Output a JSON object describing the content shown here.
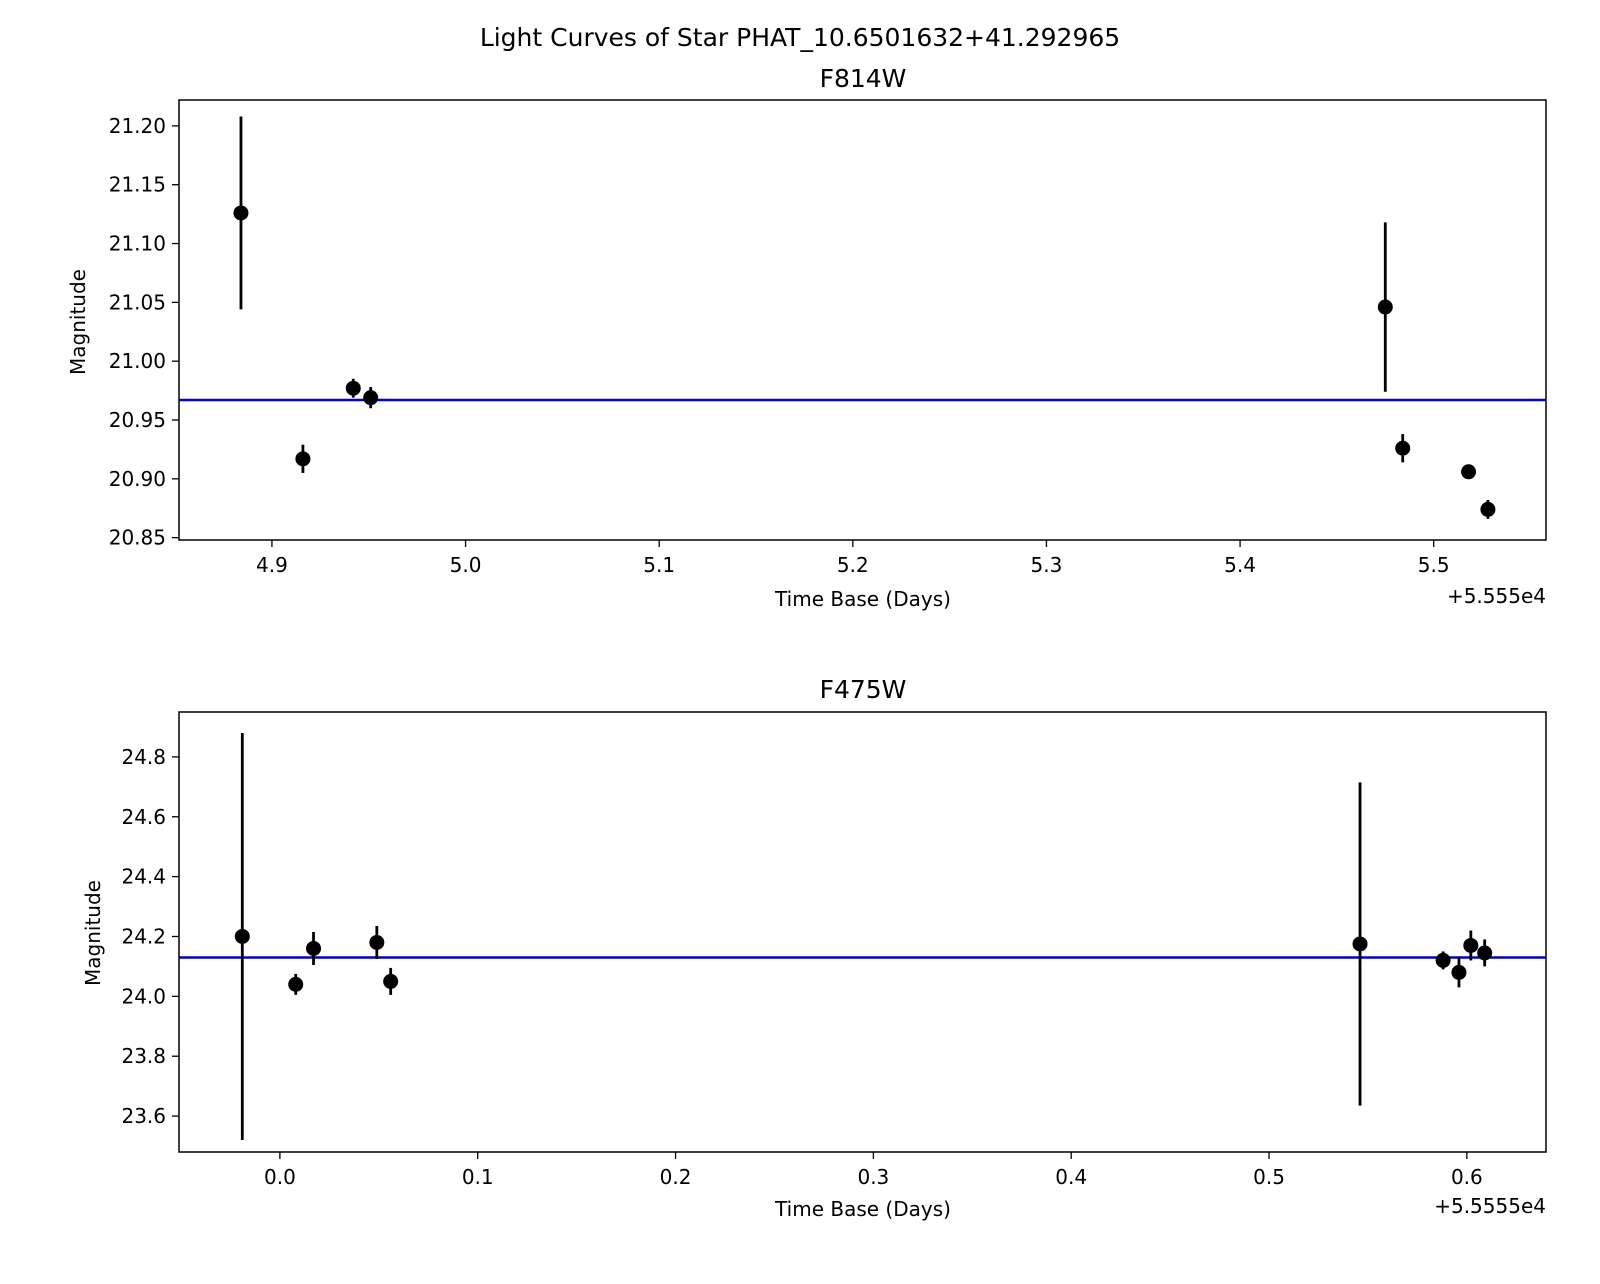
{
  "figure": {
    "suptitle": "Light Curves of Star PHAT_10.6501632+41.292965"
  },
  "colors": {
    "mean_line": "#0000cc",
    "points": "#000000"
  },
  "chart_data": [
    {
      "type": "scatter",
      "title": "F814W",
      "xlabel": "Time Base (Days)",
      "ylabel": "Magnitude",
      "x_offset_label": "+5.555e4",
      "x_offset": 55550,
      "xlim": [
        4.852,
        5.558
      ],
      "ylim": [
        20.848,
        21.222
      ],
      "xticks": [
        4.9,
        5.0,
        5.1,
        5.2,
        5.3,
        5.4,
        5.5
      ],
      "xtick_labels": [
        "4.9",
        "5.0",
        "5.1",
        "5.2",
        "5.3",
        "5.4",
        "5.5"
      ],
      "yticks": [
        20.85,
        20.9,
        20.95,
        21.0,
        21.05,
        21.1,
        21.15,
        21.2
      ],
      "ytick_labels": [
        "20.85",
        "20.90",
        "20.95",
        "21.00",
        "21.05",
        "21.10",
        "21.15",
        "21.20"
      ],
      "mean_magnitude": 20.967,
      "grid": false,
      "points": [
        {
          "x": 4.884,
          "y": 21.126,
          "err": 0.082
        },
        {
          "x": 4.916,
          "y": 20.917,
          "err": 0.012
        },
        {
          "x": 4.942,
          "y": 20.977,
          "err": 0.008
        },
        {
          "x": 4.951,
          "y": 20.969,
          "err": 0.009
        },
        {
          "x": 5.475,
          "y": 21.046,
          "err": 0.072
        },
        {
          "x": 5.484,
          "y": 20.926,
          "err": 0.012
        },
        {
          "x": 5.518,
          "y": 20.906,
          "err": 0.006
        },
        {
          "x": 5.528,
          "y": 20.874,
          "err": 0.008
        }
      ]
    },
    {
      "type": "scatter",
      "title": "F475W",
      "xlabel": "Time Base (Days)",
      "ylabel": "Magnitude",
      "x_offset_label": "+5.5555e4",
      "x_offset": 55555,
      "xlim": [
        -0.051,
        0.64
      ],
      "ylim": [
        23.48,
        24.95
      ],
      "xticks": [
        0.0,
        0.1,
        0.2,
        0.3,
        0.4,
        0.5,
        0.6
      ],
      "xtick_labels": [
        "0.0",
        "0.1",
        "0.2",
        "0.3",
        "0.4",
        "0.5",
        "0.6"
      ],
      "yticks": [
        23.6,
        23.8,
        24.0,
        24.2,
        24.4,
        24.6,
        24.8
      ],
      "ytick_labels": [
        "23.6",
        "23.8",
        "24.0",
        "24.2",
        "24.4",
        "24.6",
        "24.8"
      ],
      "mean_magnitude": 24.13,
      "grid": false,
      "points": [
        {
          "x": -0.019,
          "y": 24.2,
          "err": 0.68
        },
        {
          "x": 0.008,
          "y": 24.04,
          "err": 0.035
        },
        {
          "x": 0.017,
          "y": 24.16,
          "err": 0.055
        },
        {
          "x": 0.049,
          "y": 24.18,
          "err": 0.055
        },
        {
          "x": 0.056,
          "y": 24.05,
          "err": 0.045
        },
        {
          "x": 0.546,
          "y": 24.175,
          "err": 0.54
        },
        {
          "x": 0.588,
          "y": 24.12,
          "err": 0.03
        },
        {
          "x": 0.596,
          "y": 24.08,
          "err": 0.05
        },
        {
          "x": 0.602,
          "y": 24.17,
          "err": 0.05
        },
        {
          "x": 0.609,
          "y": 24.145,
          "err": 0.045
        }
      ]
    }
  ]
}
